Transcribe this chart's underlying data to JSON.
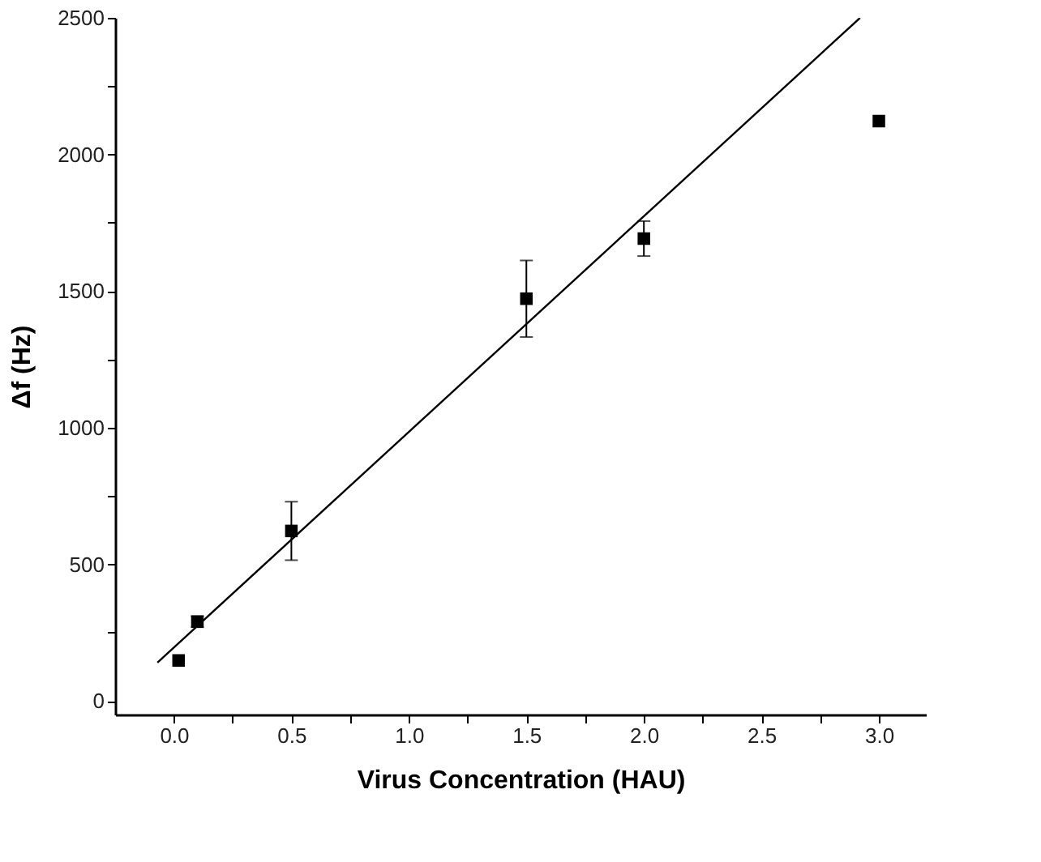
{
  "chart_data": {
    "type": "scatter",
    "xlabel": "Virus Concentration (HAU)",
    "ylabel": "Δf (Hz)",
    "x": [
      0.02,
      0.1,
      0.5,
      1.5,
      2.0,
      3.0
    ],
    "series": [
      {
        "type": "scatter",
        "color": "#000000",
        "marker": "square",
        "values": [
          148,
          290,
          622,
          1472,
          1692,
          2122
        ],
        "errors": [
          null,
          20,
          107,
          140,
          64,
          null
        ]
      },
      {
        "type": "line",
        "color": "#000000",
        "x": [
          -0.07,
          2.92
        ],
        "values": [
          140,
          2500
        ],
        "line_style": "solid"
      }
    ],
    "xlim": [
      -0.25,
      3.2
    ],
    "ylim": [
      -50,
      2500
    ],
    "xticks": [
      {
        "value": 0,
        "label": "0.0"
      },
      {
        "value": 0.25,
        "label": null
      },
      0.5,
      {
        "value": 0.75,
        "label": null
      },
      {
        "value": 1,
        "label": "1.0"
      },
      {
        "value": 1.25,
        "label": null
      },
      1.5,
      {
        "value": 1.75,
        "label": null
      },
      {
        "value": 2,
        "label": "2.0"
      },
      {
        "value": 2.25,
        "label": null
      },
      2.5,
      {
        "value": 2.75,
        "label": null
      },
      {
        "value": 3,
        "label": "3.0"
      }
    ],
    "yticks": [
      0,
      {
        "value": 250,
        "label": null
      },
      500,
      {
        "value": 750,
        "label": null
      },
      1000,
      {
        "value": 1250,
        "label": null
      },
      1500,
      {
        "value": 1750,
        "label": null
      },
      2000,
      {
        "value": 2250,
        "label": null
      },
      2500
    ],
    "grid": false
  }
}
